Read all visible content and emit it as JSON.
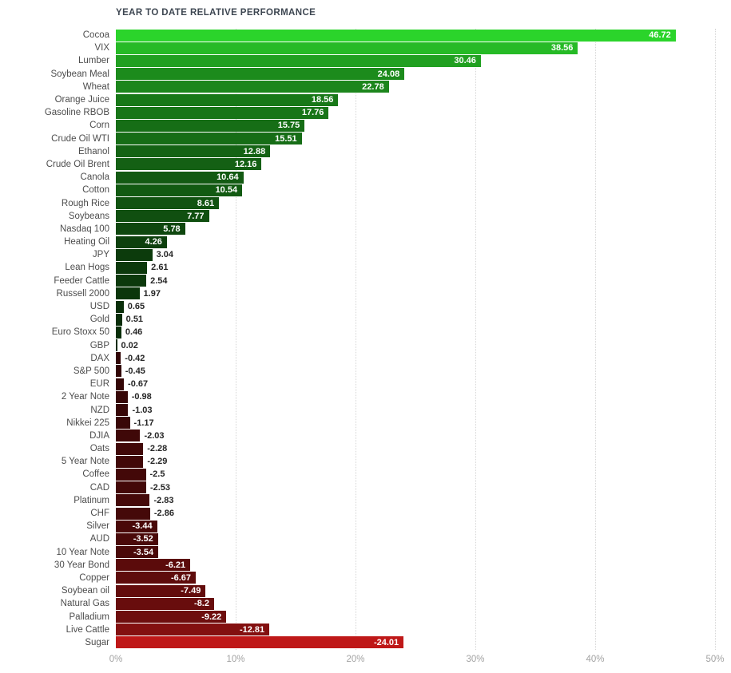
{
  "chart_data": {
    "type": "bar",
    "orientation": "horizontal",
    "title": "YEAR TO DATE RELATIVE PERFORMANCE",
    "categories": [
      "Cocoa",
      "VIX",
      "Lumber",
      "Soybean Meal",
      "Wheat",
      "Orange Juice",
      "Gasoline RBOB",
      "Corn",
      "Crude Oil WTI",
      "Ethanol",
      "Crude Oil Brent",
      "Canola",
      "Cotton",
      "Rough Rice",
      "Soybeans",
      "Nasdaq 100",
      "Heating Oil",
      "JPY",
      "Lean Hogs",
      "Feeder Cattle",
      "Russell 2000",
      "USD",
      "Gold",
      "Euro Stoxx 50",
      "GBP",
      "DAX",
      "S&P 500",
      "EUR",
      "2 Year Note",
      "NZD",
      "Nikkei 225",
      "DJIA",
      "Oats",
      "5 Year Note",
      "Coffee",
      "CAD",
      "Platinum",
      "CHF",
      "Silver",
      "AUD",
      "10 Year Note",
      "30 Year Bond",
      "Copper",
      "Soybean oil",
      "Natural Gas",
      "Palladium",
      "Live Cattle",
      "Sugar"
    ],
    "values": [
      46.72,
      38.56,
      30.46,
      24.08,
      22.78,
      18.56,
      17.76,
      15.75,
      15.51,
      12.88,
      12.16,
      10.64,
      10.54,
      8.61,
      7.77,
      5.78,
      4.26,
      3.04,
      2.61,
      2.54,
      1.97,
      0.65,
      0.51,
      0.46,
      0.02,
      -0.42,
      -0.45,
      -0.67,
      -0.98,
      -1.03,
      -1.17,
      -2.03,
      -2.28,
      -2.29,
      -2.5,
      -2.53,
      -2.83,
      -2.86,
      -3.44,
      -3.52,
      -3.54,
      -6.21,
      -6.67,
      -7.49,
      -8.2,
      -9.22,
      -12.81,
      -24.01
    ],
    "xlabel": "",
    "ylabel": "",
    "xlim": [
      0,
      50
    ],
    "x_ticks": [
      "0%",
      "10%",
      "20%",
      "30%",
      "40%",
      "50%"
    ],
    "grid": "vertical dotted gridlines at each 10% tick",
    "legend": "none",
    "layout_note": "bars extend right by absolute value; color encodes sign (green positive, red negative) and magnitude (brighter = larger); value labels inside bar in white when bar is long enough, otherwise dark text to the right of bar"
  },
  "colors": {
    "background": "#ffffff",
    "positive_bright": "#2bd42b",
    "negative_bright": "#c11414",
    "near_zero": "#1d1212",
    "grid_line": "#d6d6d6",
    "axis_text": "#a3a3a3",
    "category_text": "#4d4d4d",
    "value_inside_text": "#ffffff",
    "value_outside_text": "#262626",
    "title_text": "#3e4752"
  }
}
